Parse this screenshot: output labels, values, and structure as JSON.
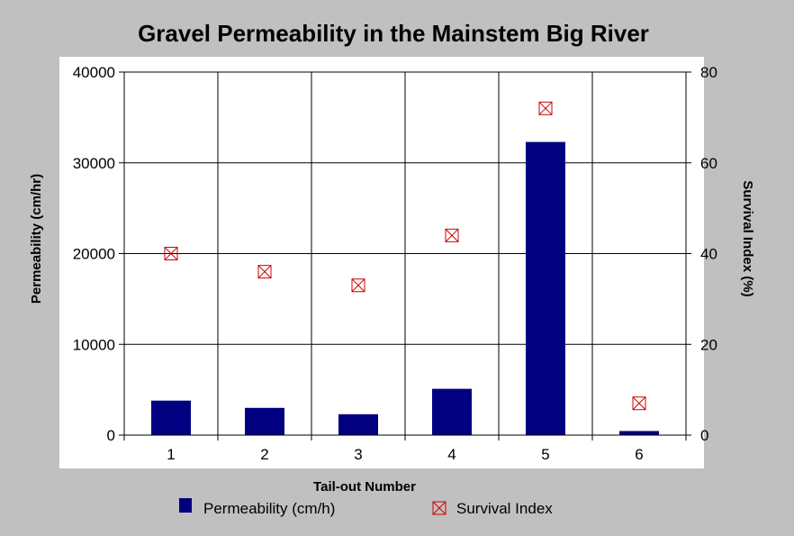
{
  "chart_data": {
    "type": "bar",
    "title": "Gravel Permeability in the Mainstem Big River",
    "xlabel": "Tail-out Number",
    "ylabel": "Permeability (cm/hr)",
    "y2label": "Survival Index (%)",
    "categories": [
      "1",
      "2",
      "3",
      "4",
      "5",
      "6"
    ],
    "ylim": [
      0,
      40000
    ],
    "y2lim": [
      0,
      80
    ],
    "yticks": [
      0,
      10000,
      20000,
      30000,
      40000
    ],
    "y2ticks": [
      0,
      20,
      40,
      60,
      80
    ],
    "grid": true,
    "legend_position": "bottom",
    "series": [
      {
        "name": "Permeability (cm/h)",
        "kind": "bar",
        "axis": "left",
        "color": "#000080",
        "values": [
          3800,
          3000,
          2300,
          5100,
          32300,
          450
        ]
      },
      {
        "name": "Survival Index",
        "kind": "marker",
        "marker": "boxed-x",
        "axis": "right",
        "color": "#cc0000",
        "values": [
          40,
          36,
          33,
          44,
          72,
          7
        ]
      }
    ]
  }
}
